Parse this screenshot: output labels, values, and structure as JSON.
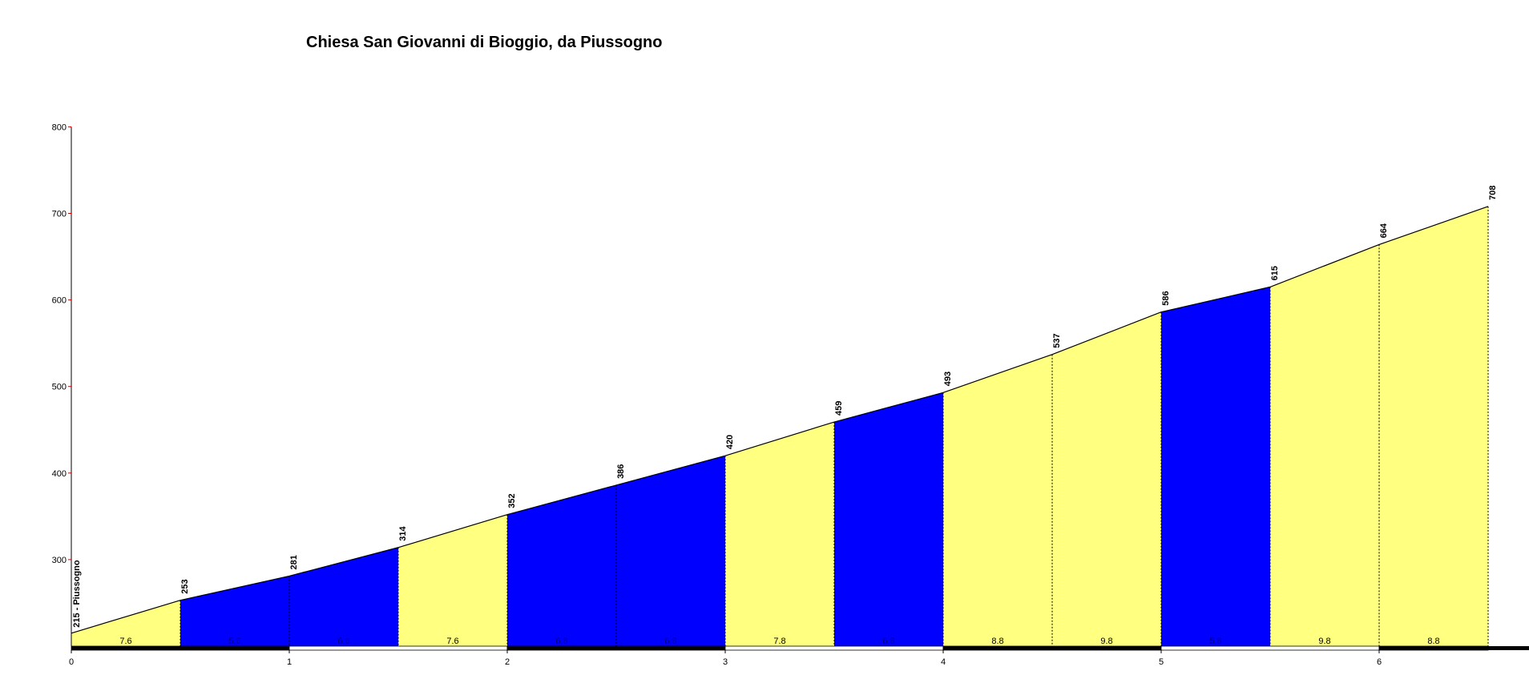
{
  "chart_data": {
    "type": "area",
    "title": "Chiesa San Giovanni di Bioggio, da Piussogno",
    "xlabel": "",
    "ylabel": "",
    "xlim": [
      0,
      7
    ],
    "ylim": [
      200,
      800
    ],
    "x_ticks": [
      "0",
      "1",
      "2",
      "3",
      "4",
      "5",
      "6"
    ],
    "y_ticks": [
      "300",
      "400",
      "500",
      "600",
      "700",
      "800"
    ],
    "start_label": "215 - Piussogno",
    "points": [
      {
        "x": 0.0,
        "y": 215
      },
      {
        "x": 0.5,
        "y": 253
      },
      {
        "x": 1.0,
        "y": 281
      },
      {
        "x": 1.5,
        "y": 314
      },
      {
        "x": 2.0,
        "y": 352
      },
      {
        "x": 2.5,
        "y": 386
      },
      {
        "x": 3.0,
        "y": 420
      },
      {
        "x": 3.5,
        "y": 459
      },
      {
        "x": 4.0,
        "y": 493
      },
      {
        "x": 4.5,
        "y": 537
      },
      {
        "x": 5.0,
        "y": 586
      },
      {
        "x": 5.5,
        "y": 615
      },
      {
        "x": 6.0,
        "y": 664
      },
      {
        "x": 6.5,
        "y": 708
      }
    ],
    "elevation_labels": [
      "253",
      "281",
      "314",
      "352",
      "386",
      "420",
      "459",
      "493",
      "537",
      "586",
      "615",
      "664",
      "708"
    ],
    "segments": [
      {
        "from": 0.0,
        "to": 0.5,
        "gradient": "7.6",
        "color": "#ffff80"
      },
      {
        "from": 0.5,
        "to": 1.0,
        "gradient": "5.6",
        "color": "#0000ff"
      },
      {
        "from": 1.0,
        "to": 1.5,
        "gradient": "6.6",
        "color": "#0000ff"
      },
      {
        "from": 1.5,
        "to": 2.0,
        "gradient": "7.6",
        "color": "#ffff80"
      },
      {
        "from": 2.0,
        "to": 2.5,
        "gradient": "6.8",
        "color": "#0000ff"
      },
      {
        "from": 2.5,
        "to": 3.0,
        "gradient": "6.8",
        "color": "#0000ff"
      },
      {
        "from": 3.0,
        "to": 3.5,
        "gradient": "7.8",
        "color": "#ffff80"
      },
      {
        "from": 3.5,
        "to": 4.0,
        "gradient": "6.8",
        "color": "#0000ff"
      },
      {
        "from": 4.0,
        "to": 4.5,
        "gradient": "8.8",
        "color": "#ffff80"
      },
      {
        "from": 4.5,
        "to": 5.0,
        "gradient": "9.8",
        "color": "#ffff80"
      },
      {
        "from": 5.0,
        "to": 5.5,
        "gradient": "5.8",
        "color": "#0000ff"
      },
      {
        "from": 5.5,
        "to": 6.0,
        "gradient": "9.8",
        "color": "#ffff80"
      },
      {
        "from": 6.0,
        "to": 6.5,
        "gradient": "8.8",
        "color": "#ffff80"
      }
    ],
    "colors": {
      "easy": "#0000ff",
      "steep": "#ffff80",
      "outline": "#000000",
      "axis_tick": "#cc0000"
    },
    "grid": false,
    "legend": "none"
  }
}
